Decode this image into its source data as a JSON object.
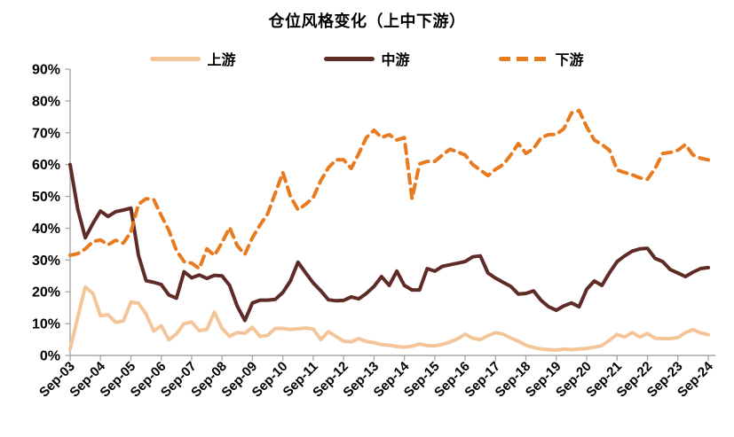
{
  "title": "仓位风格变化（上中下游）",
  "colors": {
    "upstream": "#F5C59A",
    "midstream": "#5E2B26",
    "downstream": "#E87A1F",
    "axis": "#A6A6A6",
    "text": "#000000"
  },
  "legend": {
    "items": [
      {
        "label": "上游",
        "color": "#F5C59A",
        "style": "solid"
      },
      {
        "label": "中游",
        "color": "#5E2B26",
        "style": "solid"
      },
      {
        "label": "下游",
        "color": "#E87A1F",
        "style": "dashed"
      }
    ]
  },
  "chart_data": {
    "type": "line",
    "title": "仓位风格变化（上中下游）",
    "xlabel": "",
    "ylabel": "",
    "ylim": [
      0,
      90
    ],
    "y_ticks": [
      0,
      10,
      20,
      30,
      40,
      50,
      60,
      70,
      80,
      90
    ],
    "y_tick_suffix": "%",
    "grid": false,
    "legend_position": "top",
    "x_frequency": "quarterly",
    "x_start": "Sep-03",
    "x_end": "Sep-24",
    "x_tick_labels": [
      "Sep-03",
      "Sep-04",
      "Sep-05",
      "Sep-06",
      "Sep-07",
      "Sep-08",
      "Sep-09",
      "Sep-10",
      "Sep-11",
      "Sep-12",
      "Sep-13",
      "Sep-14",
      "Sep-15",
      "Sep-16",
      "Sep-17",
      "Sep-18",
      "Sep-19",
      "Sep-20",
      "Sep-21",
      "Sep-22",
      "Sep-23",
      "Sep-24"
    ],
    "x_ticks_per_label": 4,
    "series": [
      {
        "key": "upstream",
        "name": "上游",
        "color": "#F5C59A",
        "style": "solid",
        "values": [
          2.0,
          12.0,
          21.5,
          19.5,
          12.5,
          12.8,
          10.4,
          10.8,
          16.8,
          16.4,
          13.0,
          7.7,
          9.3,
          4.9,
          6.8,
          10.0,
          10.5,
          7.8,
          8.2,
          13.6,
          8.5,
          6.0,
          7.2,
          7.0,
          8.8,
          6.0,
          6.3,
          8.5,
          8.5,
          8.2,
          8.4,
          8.6,
          8.3,
          5.0,
          7.5,
          6.0,
          4.5,
          4.3,
          5.3,
          4.4,
          4.0,
          3.4,
          3.2,
          2.8,
          2.6,
          2.9,
          3.6,
          3.1,
          3.0,
          3.5,
          4.2,
          5.2,
          6.7,
          5.4,
          5.0,
          6.2,
          7.2,
          6.7,
          5.5,
          4.5,
          3.2,
          2.5,
          2.0,
          1.8,
          1.7,
          2.0,
          1.8,
          2.0,
          2.2,
          2.6,
          3.1,
          4.8,
          6.6,
          5.8,
          7.2,
          5.8,
          6.9,
          5.4,
          5.3,
          5.3,
          5.6,
          7.2,
          8.1,
          7.1,
          6.5
        ]
      },
      {
        "key": "midstream",
        "name": "中游",
        "color": "#5E2B26",
        "style": "solid",
        "values": [
          60.0,
          46.0,
          37.0,
          41.5,
          45.4,
          43.7,
          45.2,
          45.7,
          46.3,
          31.5,
          23.5,
          23.0,
          22.3,
          19.0,
          18.0,
          26.3,
          24.4,
          25.3,
          24.2,
          25.2,
          25.0,
          22.0,
          15.5,
          11.0,
          16.5,
          17.4,
          17.4,
          17.6,
          19.8,
          23.4,
          29.3,
          26.0,
          22.8,
          20.3,
          17.5,
          17.2,
          17.3,
          18.4,
          17.8,
          19.5,
          21.7,
          24.8,
          22.0,
          26.5,
          22.0,
          20.6,
          20.6,
          27.3,
          26.5,
          28.0,
          28.5,
          29.0,
          29.5,
          31.0,
          31.3,
          25.9,
          24.3,
          23.0,
          21.7,
          19.3,
          19.5,
          20.3,
          17.3,
          15.3,
          14.2,
          15.6,
          16.5,
          15.3,
          20.8,
          23.4,
          22.0,
          26.0,
          29.5,
          31.3,
          32.8,
          33.5,
          33.7,
          30.5,
          29.5,
          27.0,
          25.9,
          24.8,
          26.2,
          27.3,
          27.6
        ]
      },
      {
        "key": "downstream",
        "name": "下游",
        "color": "#E87A1F",
        "style": "dashed",
        "values": [
          31.5,
          32.0,
          33.5,
          35.8,
          36.3,
          34.8,
          36.2,
          35.3,
          38.8,
          47.5,
          49.3,
          49.0,
          44.0,
          39.3,
          33.0,
          29.5,
          29.0,
          27.3,
          33.5,
          31.4,
          35.5,
          40.2,
          34.5,
          31.8,
          37.0,
          41.0,
          44.5,
          51.0,
          57.5,
          50.0,
          45.8,
          47.5,
          49.6,
          55.0,
          59.0,
          61.5,
          61.5,
          58.8,
          63.5,
          68.5,
          70.8,
          68.5,
          69.4,
          67.7,
          68.5,
          49.3,
          60.2,
          61.0,
          61.0,
          63.0,
          64.8,
          64.0,
          63.0,
          60.0,
          58.3,
          56.5,
          58.5,
          60.0,
          63.0,
          66.6,
          63.5,
          65.0,
          68.5,
          69.4,
          69.5,
          71.3,
          76.2,
          77.0,
          71.9,
          67.7,
          66.3,
          64.5,
          58.3,
          57.5,
          56.8,
          55.8,
          55.4,
          58.8,
          63.5,
          63.8,
          64.5,
          66.3,
          63.0,
          62.0,
          61.5
        ]
      }
    ]
  }
}
